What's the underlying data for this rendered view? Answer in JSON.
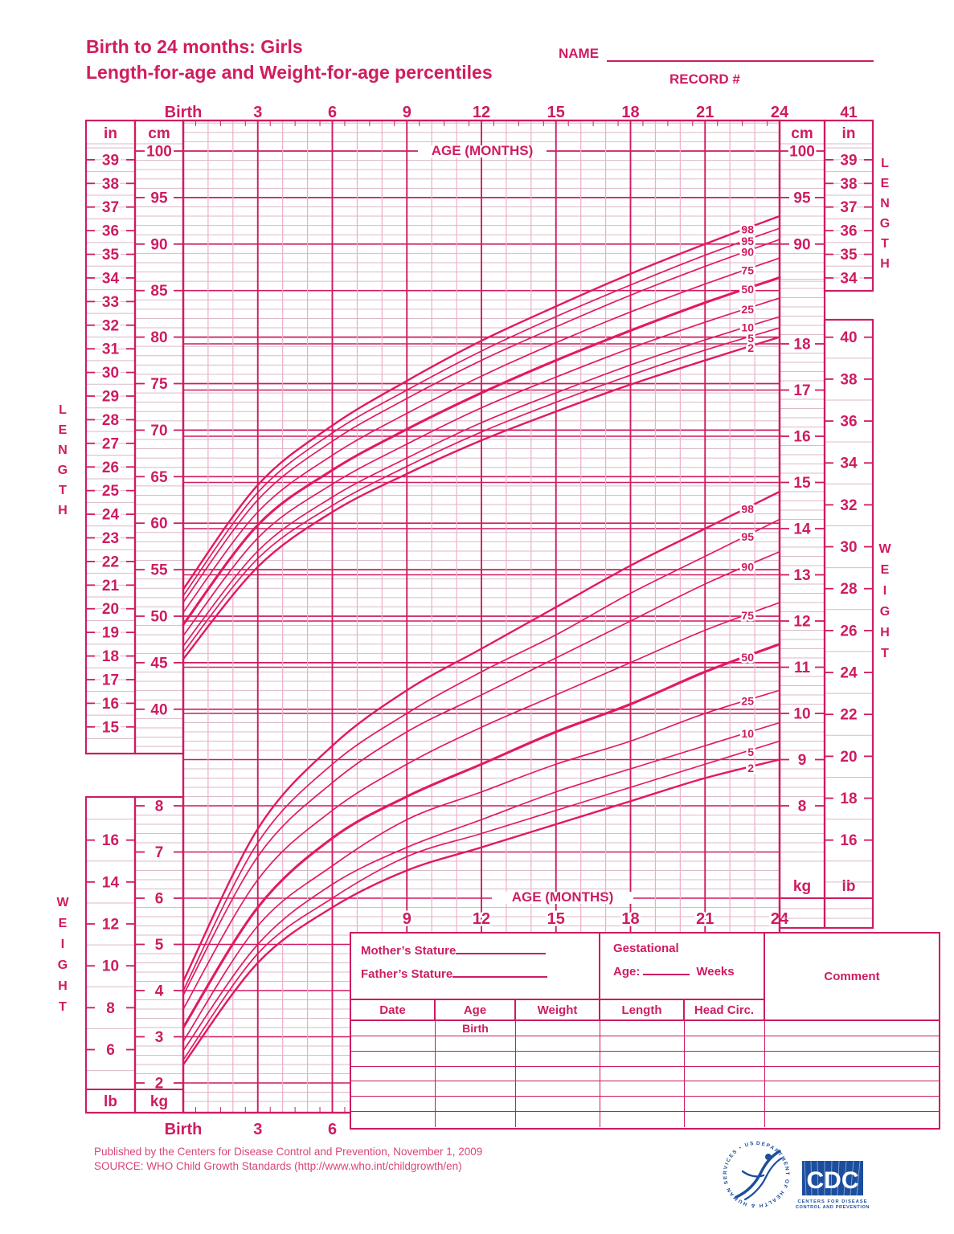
{
  "header": {
    "title_line1": "Birth to 24 months: Girls",
    "title_line2": "Length-for-age and Weight-for-age percentiles",
    "name_label": "NAME",
    "record_label": "RECORD #"
  },
  "colors": {
    "ink": "#ce1c62",
    "curve": "#e01a63",
    "grid_minor": "#d9bac8",
    "grid_month": "#eeadca",
    "logo_blue": "#1b4e9e"
  },
  "chart_data": {
    "type": "line",
    "title": "Birth to 24 months: Girls — Length-for-age and Weight-for-age percentiles",
    "x_axis": {
      "label": "AGE (MONTHS)",
      "tick_labels": [
        "Birth",
        "3",
        "6",
        "9",
        "12",
        "15",
        "18",
        "21",
        "24"
      ],
      "months": [
        0,
        3,
        6,
        9,
        12,
        15,
        18,
        21,
        24
      ],
      "bottom_outside_ticks": [
        "Birth",
        "3",
        "6"
      ],
      "bottom_inside_ticks": [
        "9",
        "12",
        "15",
        "18",
        "21",
        "24"
      ],
      "right_top_tick": "41",
      "range": [
        0,
        24
      ]
    },
    "axes": {
      "unit_labels": {
        "inches": "in",
        "centimeters": "cm",
        "kilograms": "kg",
        "pounds": "lb"
      },
      "length_cm_major_ticks": [
        100,
        95,
        90,
        85,
        80,
        75,
        70,
        65,
        60,
        55,
        50,
        45,
        40
      ],
      "length_in_left_ticks": [
        39,
        38,
        37,
        36,
        35,
        34,
        33,
        32,
        31,
        30,
        29,
        28,
        27,
        26,
        25,
        24,
        23,
        22,
        21,
        20,
        19,
        18,
        17,
        16,
        15
      ],
      "length_in_right_ticks": [
        39,
        38,
        37,
        36,
        35,
        34
      ],
      "length_cm_right_ticks": [
        100,
        95,
        90
      ],
      "weight_kg_right_ticks": [
        18,
        17,
        16,
        15,
        14,
        13,
        12,
        11,
        10,
        9,
        8
      ],
      "weight_kg_left_ticks": [
        8,
        7,
        6,
        5,
        4,
        3,
        2
      ],
      "weight_lb_right_ticks": [
        40,
        38,
        36,
        34,
        32,
        30,
        28,
        26,
        24,
        22,
        20,
        18,
        16
      ],
      "weight_lb_left_ticks": [
        16,
        14,
        12,
        10,
        8,
        6
      ],
      "length_range_cm": [
        40,
        100
      ],
      "weight_range_kg": [
        2,
        18
      ]
    },
    "ylabel_length": "LENGTH",
    "ylabel_weight": "WEIGHT",
    "percentile_labels": [
      "98",
      "95",
      "90",
      "75",
      "50",
      "25",
      "10",
      "5",
      "2"
    ],
    "length_for_age_cm": {
      "months": [
        0,
        3,
        6,
        9,
        12,
        15,
        18,
        21,
        24
      ],
      "series": [
        {
          "percentile": "2",
          "values": [
            45.4,
            55.3,
            61.2,
            65.3,
            68.9,
            72.0,
            74.9,
            77.5,
            80.0
          ]
        },
        {
          "percentile": "5",
          "values": [
            46.1,
            56.2,
            61.9,
            66.1,
            69.8,
            73.0,
            75.9,
            78.6,
            81.0
          ]
        },
        {
          "percentile": "10",
          "values": [
            46.8,
            57.0,
            62.8,
            67.0,
            70.8,
            74.0,
            77.0,
            79.7,
            82.2
          ]
        },
        {
          "percentile": "25",
          "values": [
            47.9,
            58.4,
            64.2,
            68.5,
            72.4,
            75.7,
            78.8,
            81.6,
            84.2
          ]
        },
        {
          "percentile": "50",
          "values": [
            49.1,
            59.8,
            65.7,
            70.1,
            74.0,
            77.5,
            80.7,
            83.7,
            86.4
          ]
        },
        {
          "percentile": "75",
          "values": [
            50.4,
            61.2,
            67.3,
            71.8,
            75.8,
            79.4,
            82.7,
            85.7,
            88.5
          ]
        },
        {
          "percentile": "90",
          "values": [
            51.5,
            62.5,
            68.8,
            73.4,
            77.5,
            81.1,
            84.5,
            87.6,
            90.5
          ]
        },
        {
          "percentile": "95",
          "values": [
            52.2,
            63.3,
            69.7,
            74.3,
            78.5,
            82.2,
            85.6,
            88.8,
            91.7
          ]
        },
        {
          "percentile": "98",
          "values": [
            52.9,
            64.1,
            70.5,
            75.3,
            79.6,
            83.3,
            86.8,
            90.0,
            93.0
          ]
        }
      ]
    },
    "weight_for_age_kg": {
      "months": [
        0,
        3,
        6,
        9,
        12,
        15,
        18,
        21,
        24
      ],
      "series": [
        {
          "percentile": "2",
          "values": [
            2.4,
            4.6,
            5.8,
            6.6,
            7.1,
            7.6,
            8.1,
            8.6,
            9.0
          ]
        },
        {
          "percentile": "5",
          "values": [
            2.5,
            4.8,
            6.0,
            6.9,
            7.4,
            7.9,
            8.4,
            8.9,
            9.4
          ]
        },
        {
          "percentile": "10",
          "values": [
            2.7,
            5.0,
            6.3,
            7.1,
            7.7,
            8.3,
            8.8,
            9.3,
            9.8
          ]
        },
        {
          "percentile": "25",
          "values": [
            2.9,
            5.4,
            6.7,
            7.7,
            8.3,
            8.9,
            9.4,
            10.0,
            10.5
          ]
        },
        {
          "percentile": "50",
          "values": [
            3.2,
            5.8,
            7.3,
            8.2,
            8.9,
            9.6,
            10.2,
            10.9,
            11.5
          ]
        },
        {
          "percentile": "75",
          "values": [
            3.6,
            6.4,
            7.9,
            8.9,
            9.7,
            10.4,
            11.1,
            11.8,
            12.4
          ]
        },
        {
          "percentile": "90",
          "values": [
            3.9,
            6.9,
            8.5,
            9.6,
            10.4,
            11.2,
            12.0,
            12.8,
            13.5
          ]
        },
        {
          "percentile": "95",
          "values": [
            4.0,
            7.2,
            8.9,
            10.0,
            10.9,
            11.7,
            12.6,
            13.4,
            14.2
          ]
        },
        {
          "percentile": "98",
          "values": [
            4.2,
            7.5,
            9.3,
            10.5,
            11.4,
            12.3,
            13.2,
            14.0,
            14.8
          ]
        }
      ]
    }
  },
  "table": {
    "mothers_stature_label": "Mother’s Stature",
    "fathers_stature_label": "Father’s Stature",
    "gestational_label": "Gestational",
    "age_prefix_label": "Age:",
    "weeks_label": "Weeks",
    "comment_label": "Comment",
    "columns": [
      "Date",
      "Age",
      "Weight",
      "Length",
      "Head Circ."
    ],
    "first_row_age_value": "Birth",
    "empty_rows": 7
  },
  "footer": {
    "published_line": "Published by the Centers for Disease Control and Prevention, November 1, 2009",
    "source_line": "SOURCE:  WHO Child Growth Standards (http://www.who.int/childgrowth/en)"
  },
  "logos": {
    "hhs_ring_text": "DEPARTMENT OF HEALTH & HUMAN SERVICES • USA",
    "cdc_text": "CDC",
    "cdc_subtext_line1": "CENTERS FOR DISEASE",
    "cdc_subtext_line2": "CONTROL AND PREVENTION"
  }
}
